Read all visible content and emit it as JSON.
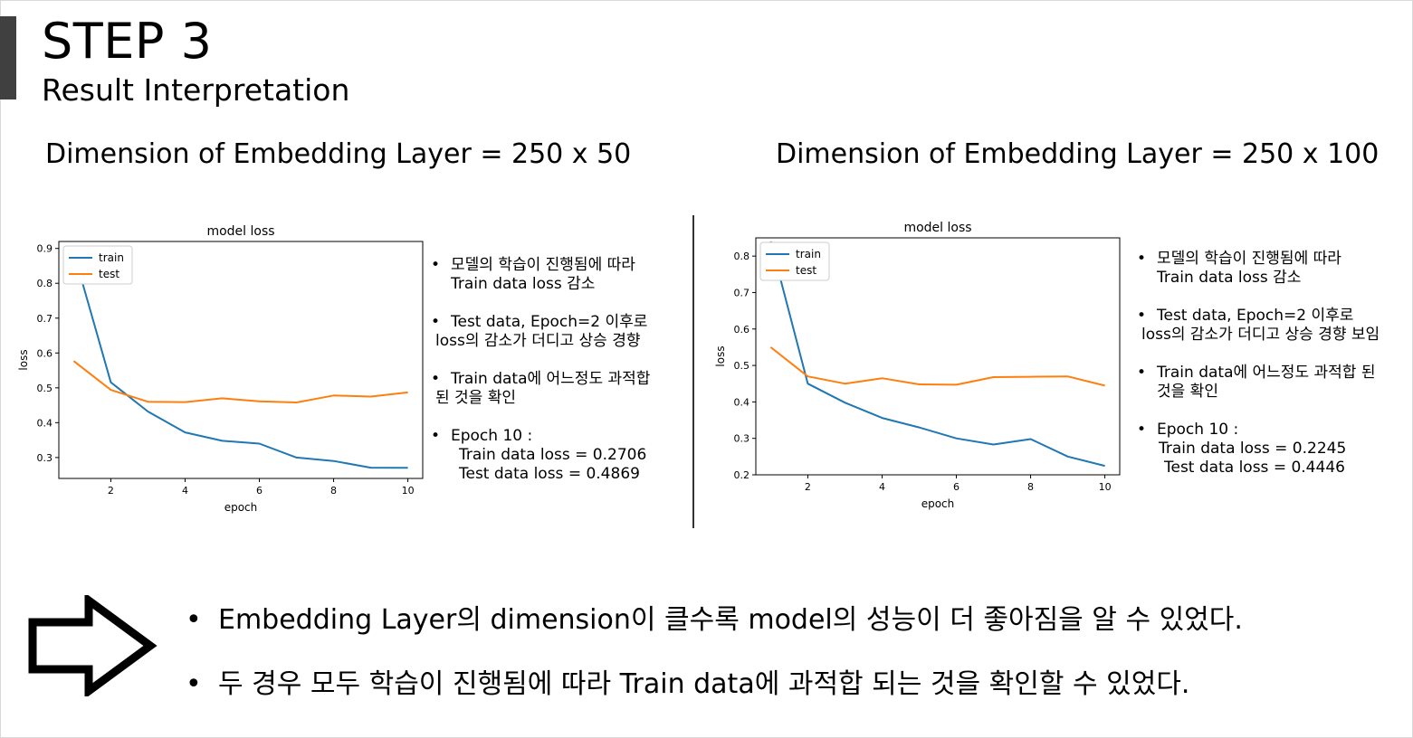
{
  "header": {
    "title": "STEP 3",
    "subtitle": "Result Interpretation"
  },
  "panels": [
    {
      "heading": "Dimension of Embedding Layer = 250 x 50",
      "notes": [
        {
          "line1": "모델의 학습이 진행됨에 따라",
          "line2": "Train data loss 감소"
        },
        {
          "line1": "Test data, Epoch=2 이후로",
          "line2": "loss의 감소가 더디고 상승 경향"
        },
        {
          "line1": "Train data에 어느정도 과적합",
          "line2": "된 것을 확인"
        },
        {
          "line1": "Epoch 10 :",
          "line2": "Train data loss = 0.2706",
          "line3": "Test data loss = 0.4869"
        }
      ]
    },
    {
      "heading": "Dimension of Embedding Layer = 250 x 100",
      "notes": [
        {
          "line1": "모델의 학습이 진행됨에 따라",
          "line2": "Train data loss 감소"
        },
        {
          "line1": "Test data, Epoch=2 이후로",
          "line2": "loss의 감소가 더디고 상승 경향 보임"
        },
        {
          "line1": "Train data에 어느정도 과적합 된",
          "line2": "것을 확인"
        },
        {
          "line1": "Epoch 10 :",
          "line2": "Train data loss = 0.2245",
          "line3": "Test data loss = 0.4446"
        }
      ]
    }
  ],
  "conclusions": [
    "Embedding Layer의 dimension이 클수록 model의 성능이 더 좋아짐을 알 수 있었다.",
    "두 경우 모두 학습이 진행됨에 따라 Train data에 과적합 되는 것을 확인할 수 있었다."
  ],
  "icons": {
    "arrow": "right-arrow-icon"
  },
  "chart_data": [
    {
      "type": "line",
      "title": "model loss",
      "xlabel": "epoch",
      "ylabel": "loss",
      "xlim": [
        0.6,
        10.4
      ],
      "ylim": [
        0.24,
        0.92
      ],
      "xticks": [
        2,
        4,
        6,
        8,
        10
      ],
      "yticks": [
        0.3,
        0.4,
        0.5,
        0.6,
        0.7,
        0.8,
        0.9
      ],
      "legend": "upper-left",
      "x": [
        1,
        2,
        3,
        4,
        5,
        6,
        7,
        8,
        9,
        10
      ],
      "series": [
        {
          "name": "train",
          "color": "#1f77b4",
          "values": [
            0.89,
            0.516,
            0.432,
            0.372,
            0.348,
            0.34,
            0.3,
            0.29,
            0.271,
            0.2706
          ]
        },
        {
          "name": "test",
          "color": "#ff7f0e",
          "values": [
            0.577,
            0.494,
            0.46,
            0.459,
            0.47,
            0.461,
            0.458,
            0.478,
            0.475,
            0.4869
          ]
        }
      ]
    },
    {
      "type": "line",
      "title": "model loss",
      "xlabel": "epoch",
      "ylabel": "loss",
      "xlim": [
        0.6,
        10.4
      ],
      "ylim": [
        0.2,
        0.85
      ],
      "xticks": [
        2,
        4,
        6,
        8,
        10
      ],
      "yticks": [
        0.2,
        0.3,
        0.4,
        0.5,
        0.6,
        0.7,
        0.8
      ],
      "legend": "upper-left",
      "x": [
        1,
        2,
        3,
        4,
        5,
        6,
        7,
        8,
        9,
        10
      ],
      "series": [
        {
          "name": "train",
          "color": "#1f77b4",
          "values": [
            0.84,
            0.45,
            0.398,
            0.356,
            0.33,
            0.3,
            0.283,
            0.298,
            0.25,
            0.2245
          ]
        },
        {
          "name": "test",
          "color": "#ff7f0e",
          "values": [
            0.55,
            0.47,
            0.45,
            0.465,
            0.448,
            0.447,
            0.468,
            0.469,
            0.47,
            0.4446
          ]
        }
      ]
    }
  ]
}
